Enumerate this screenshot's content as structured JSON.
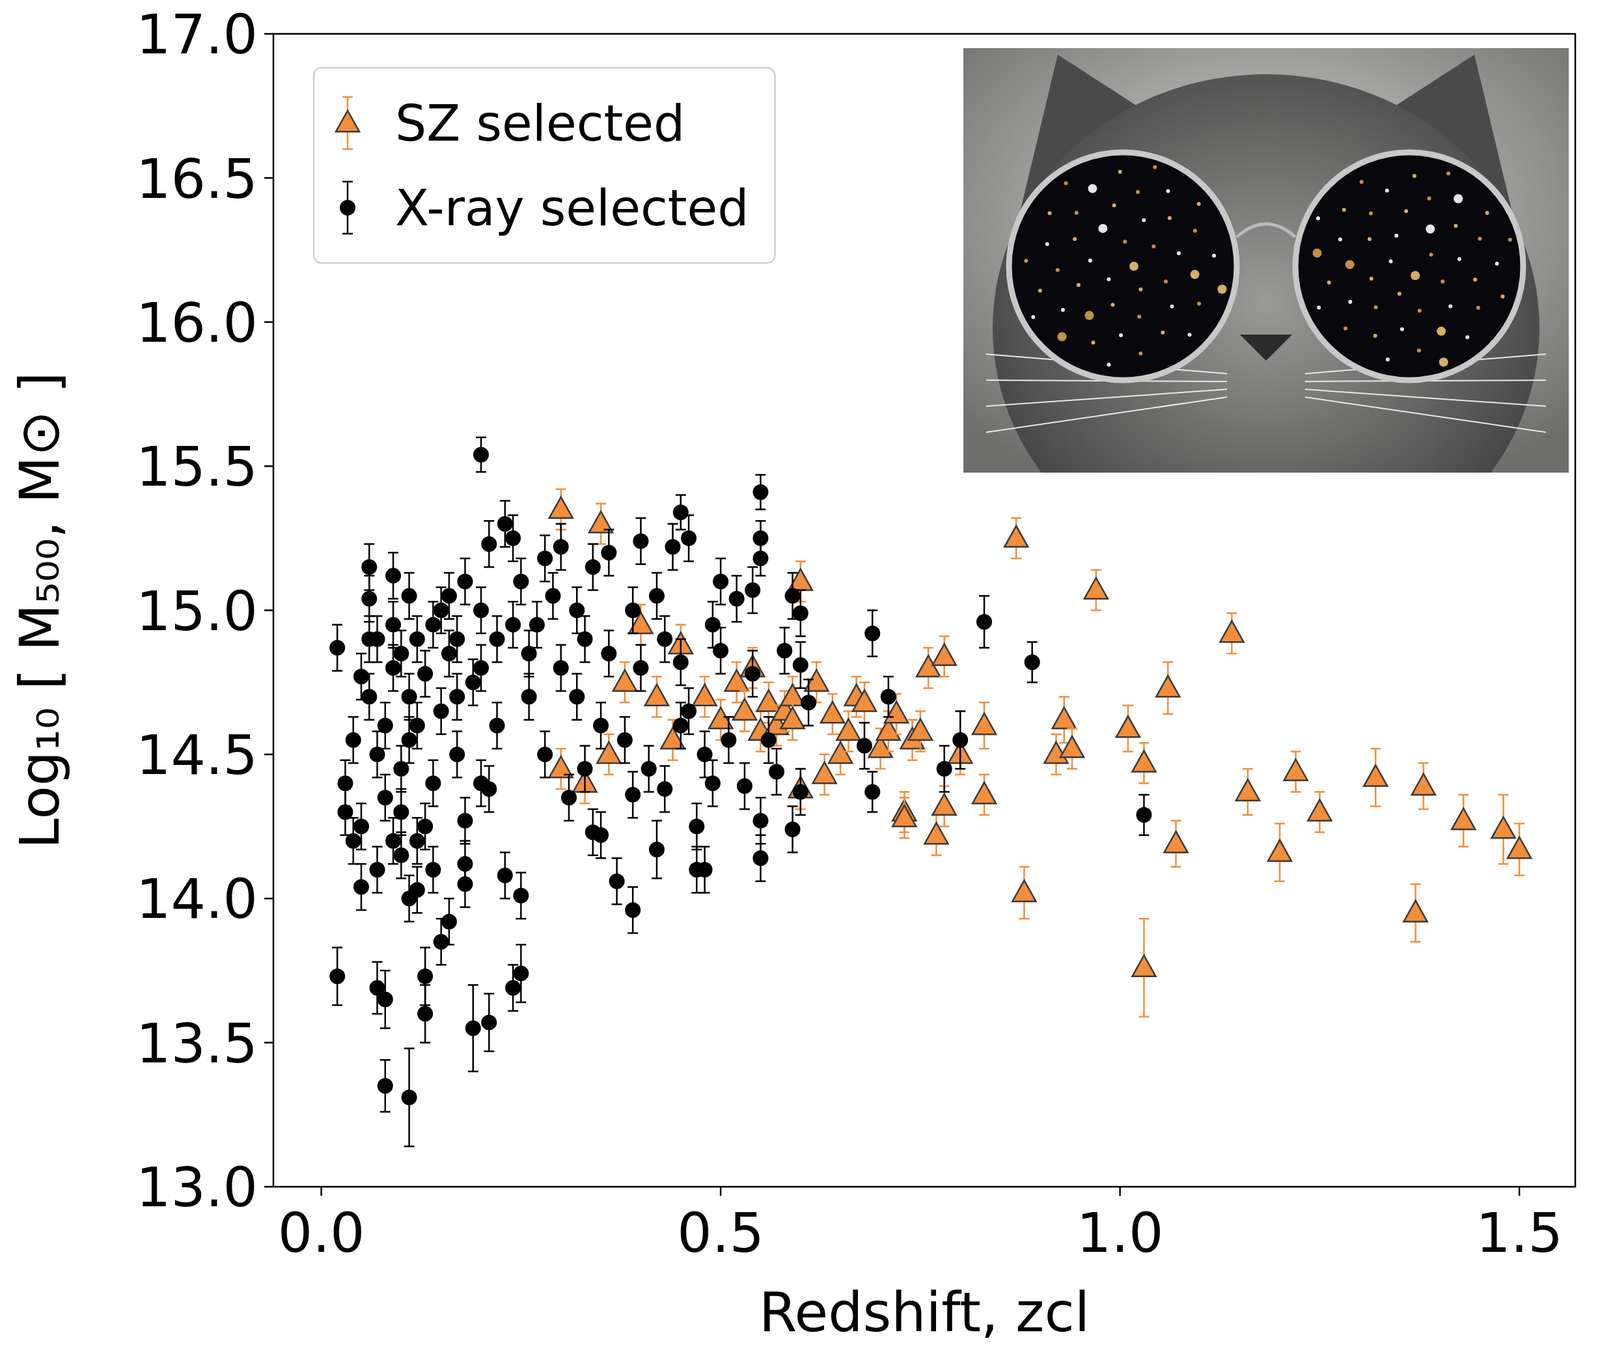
{
  "chart_data": {
    "type": "scatter",
    "x_label": "Redshift, zcl",
    "y_label": "Log₁₀ [ M₅₀₀, M⊙ ]",
    "xlim": [
      -0.06,
      1.57
    ],
    "ylim": [
      13,
      17
    ],
    "xticks": [
      {
        "value": 0,
        "label": "0.0"
      },
      0.5,
      {
        "value": 1,
        "label": "1.0"
      },
      1.5
    ],
    "yticks": [
      {
        "value": 13,
        "label": "13.0"
      },
      13.5,
      {
        "value": 14,
        "label": "14.0"
      },
      14.5,
      {
        "value": 15,
        "label": "15.0"
      },
      15.5,
      {
        "value": 16,
        "label": "16.0"
      },
      16.5,
      {
        "value": 17,
        "label": "17.0"
      }
    ],
    "grid": false,
    "legend": "upper left",
    "series": [
      {
        "name": "SZ selected",
        "color": "#f28e3c",
        "marker": "triangle",
        "x": [
          0.3,
          0.35,
          0.3,
          0.33,
          0.36,
          0.38,
          0.4,
          0.42,
          0.44,
          0.45,
          0.48,
          0.5,
          0.52,
          0.53,
          0.54,
          0.55,
          0.56,
          0.57,
          0.58,
          0.59,
          0.59,
          0.6,
          0.6,
          0.62,
          0.63,
          0.64,
          0.65,
          0.66,
          0.67,
          0.68,
          0.7,
          0.71,
          0.72,
          0.73,
          0.73,
          0.74,
          0.75,
          0.76,
          0.77,
          0.78,
          0.78,
          0.8,
          0.83,
          0.83,
          0.87,
          0.88,
          0.92,
          0.93,
          0.94,
          0.97,
          1.01,
          1.03,
          1.03,
          1.06,
          1.07,
          1.14,
          1.16,
          1.2,
          1.22,
          1.25,
          1.32,
          1.37,
          1.38,
          1.43,
          1.48,
          1.5
        ],
        "values": [
          15.35,
          15.3,
          14.45,
          14.4,
          14.5,
          14.75,
          14.95,
          14.7,
          14.55,
          14.88,
          14.7,
          14.62,
          14.75,
          14.65,
          14.8,
          14.58,
          14.68,
          14.6,
          14.65,
          14.7,
          14.62,
          15.1,
          14.38,
          14.75,
          14.43,
          14.64,
          14.5,
          14.58,
          14.7,
          14.68,
          14.52,
          14.58,
          14.64,
          14.3,
          14.28,
          14.55,
          14.58,
          14.8,
          14.22,
          14.32,
          14.84,
          14.5,
          14.6,
          14.36,
          15.25,
          14.02,
          14.5,
          14.62,
          14.52,
          15.07,
          14.59,
          13.76,
          14.47,
          14.73,
          14.19,
          14.92,
          14.37,
          14.16,
          14.44,
          14.3,
          14.42,
          13.95,
          14.39,
          14.27,
          14.24,
          14.17
        ],
        "errors": [
          0.07,
          0.07,
          0.07,
          0.07,
          0.07,
          0.07,
          0.07,
          0.07,
          0.07,
          0.07,
          0.07,
          0.07,
          0.07,
          0.07,
          0.07,
          0.07,
          0.07,
          0.07,
          0.07,
          0.07,
          0.07,
          0.07,
          0.07,
          0.07,
          0.07,
          0.07,
          0.07,
          0.07,
          0.07,
          0.07,
          0.07,
          0.07,
          0.07,
          0.07,
          0.07,
          0.07,
          0.07,
          0.07,
          0.07,
          0.07,
          0.07,
          0.07,
          0.08,
          0.07,
          0.07,
          0.09,
          0.07,
          0.08,
          0.07,
          0.07,
          0.08,
          0.17,
          0.07,
          0.09,
          0.08,
          0.07,
          0.08,
          0.1,
          0.07,
          0.07,
          0.1,
          0.1,
          0.08,
          0.09,
          0.12,
          0.09
        ]
      },
      {
        "name": "X-ray selected",
        "color": "#000000",
        "marker": "circle",
        "x": [
          0.02,
          0.02,
          0.03,
          0.04,
          0.04,
          0.05,
          0.05,
          0.06,
          0.06,
          0.06,
          0.06,
          0.07,
          0.07,
          0.07,
          0.08,
          0.08,
          0.08,
          0.08,
          0.09,
          0.09,
          0.09,
          0.1,
          0.1,
          0.1,
          0.11,
          0.11,
          0.11,
          0.11,
          0.11,
          0.12,
          0.12,
          0.12,
          0.12,
          0.13,
          0.13,
          0.13,
          0.14,
          0.14,
          0.14,
          0.15,
          0.15,
          0.16,
          0.16,
          0.16,
          0.17,
          0.17,
          0.18,
          0.18,
          0.18,
          0.18,
          0.19,
          0.2,
          0.2,
          0.2,
          0.2,
          0.21,
          0.21,
          0.21,
          0.22,
          0.22,
          0.23,
          0.23,
          0.24,
          0.24,
          0.25,
          0.25,
          0.25,
          0.26,
          0.26,
          0.27,
          0.28,
          0.28,
          0.29,
          0.3,
          0.3,
          0.31,
          0.32,
          0.32,
          0.33,
          0.33,
          0.34,
          0.34,
          0.35,
          0.35,
          0.36,
          0.36,
          0.37,
          0.38,
          0.39,
          0.39,
          0.39,
          0.4,
          0.4,
          0.41,
          0.42,
          0.42,
          0.43,
          0.43,
          0.44,
          0.45,
          0.45,
          0.45,
          0.46,
          0.46,
          0.47,
          0.47,
          0.48,
          0.48,
          0.49,
          0.49,
          0.5,
          0.5,
          0.51,
          0.52,
          0.53,
          0.54,
          0.54,
          0.55,
          0.55,
          0.55,
          0.55,
          0.55,
          0.56,
          0.57,
          0.58,
          0.59,
          0.59,
          0.6,
          0.6,
          0.6,
          0.61,
          0.68,
          0.69,
          0.69,
          0.71,
          0.78,
          0.8,
          0.83,
          0.89,
          1.03,
          0.03,
          0.05,
          0.07,
          0.09,
          0.1,
          0.13,
          0.15,
          0.17,
          0.19,
          0.24
        ],
        "values": [
          14.87,
          13.73,
          14.3,
          14.55,
          14.2,
          14.77,
          14.04,
          15.15,
          15.04,
          14.9,
          14.7,
          14.5,
          14.1,
          13.69,
          14.6,
          14.35,
          13.65,
          13.35,
          15.12,
          14.95,
          14.8,
          14.45,
          14.3,
          14.15,
          15.05,
          14.7,
          14.55,
          14.0,
          13.31,
          14.9,
          14.6,
          14.2,
          14.03,
          14.78,
          13.73,
          13.6,
          14.95,
          14.4,
          14.1,
          13.85,
          14.65,
          15.05,
          14.85,
          13.92,
          14.7,
          14.5,
          15.1,
          14.27,
          14.12,
          14.05,
          13.55,
          15.54,
          15.0,
          14.8,
          14.4,
          13.57,
          15.23,
          14.38,
          14.9,
          14.6,
          15.3,
          14.08,
          15.25,
          13.69,
          14.01,
          13.74,
          15.1,
          14.85,
          14.7,
          14.95,
          15.18,
          14.5,
          15.05,
          14.8,
          15.22,
          14.35,
          15.0,
          14.7,
          14.9,
          14.45,
          15.15,
          14.23,
          14.6,
          14.22,
          15.2,
          14.85,
          14.06,
          14.55,
          15.0,
          14.36,
          13.96,
          15.24,
          14.8,
          14.45,
          15.05,
          14.17,
          14.9,
          14.38,
          15.22,
          15.34,
          14.6,
          14.82,
          15.25,
          14.65,
          14.1,
          14.25,
          14.1,
          14.5,
          14.95,
          14.4,
          15.1,
          14.86,
          14.55,
          15.04,
          14.39,
          15.07,
          14.78,
          15.41,
          15.25,
          15.18,
          14.27,
          14.14,
          14.55,
          14.44,
          14.86,
          14.24,
          15.05,
          14.99,
          14.81,
          14.37,
          14.68,
          14.53,
          14.92,
          14.37,
          14.7,
          14.45,
          14.55,
          14.96,
          14.82,
          14.29,
          14.4,
          14.25,
          14.9,
          14.2,
          14.85,
          14.25,
          15.0,
          14.9,
          14.75,
          14.95
        ],
        "errors": [
          0.08,
          0.1,
          0.08,
          0.08,
          0.08,
          0.08,
          0.08,
          0.08,
          0.08,
          0.08,
          0.08,
          0.08,
          0.08,
          0.09,
          0.08,
          0.08,
          0.1,
          0.09,
          0.08,
          0.08,
          0.08,
          0.08,
          0.08,
          0.08,
          0.08,
          0.08,
          0.08,
          0.08,
          0.17,
          0.08,
          0.08,
          0.08,
          0.08,
          0.08,
          0.1,
          0.1,
          0.08,
          0.08,
          0.08,
          0.08,
          0.08,
          0.08,
          0.08,
          0.08,
          0.08,
          0.08,
          0.08,
          0.08,
          0.08,
          0.08,
          0.15,
          0.06,
          0.08,
          0.08,
          0.08,
          0.1,
          0.08,
          0.08,
          0.08,
          0.08,
          0.08,
          0.08,
          0.08,
          0.08,
          0.08,
          0.1,
          0.08,
          0.08,
          0.08,
          0.08,
          0.08,
          0.08,
          0.08,
          0.08,
          0.08,
          0.08,
          0.08,
          0.08,
          0.08,
          0.08,
          0.08,
          0.08,
          0.08,
          0.08,
          0.08,
          0.08,
          0.08,
          0.08,
          0.08,
          0.08,
          0.08,
          0.08,
          0.08,
          0.08,
          0.08,
          0.1,
          0.08,
          0.08,
          0.08,
          0.06,
          0.08,
          0.08,
          0.08,
          0.08,
          0.08,
          0.08,
          0.08,
          0.08,
          0.08,
          0.08,
          0.08,
          0.08,
          0.08,
          0.08,
          0.08,
          0.08,
          0.08,
          0.06,
          0.06,
          0.06,
          0.08,
          0.08,
          0.08,
          0.08,
          0.08,
          0.08,
          0.08,
          0.08,
          0.08,
          0.08,
          0.08,
          0.08,
          0.08,
          0.07,
          0.07,
          0.08,
          0.1,
          0.09,
          0.07,
          0.07,
          0.08,
          0.08,
          0.08,
          0.08,
          0.08,
          0.08,
          0.08,
          0.08,
          0.08,
          0.08
        ]
      }
    ]
  }
}
